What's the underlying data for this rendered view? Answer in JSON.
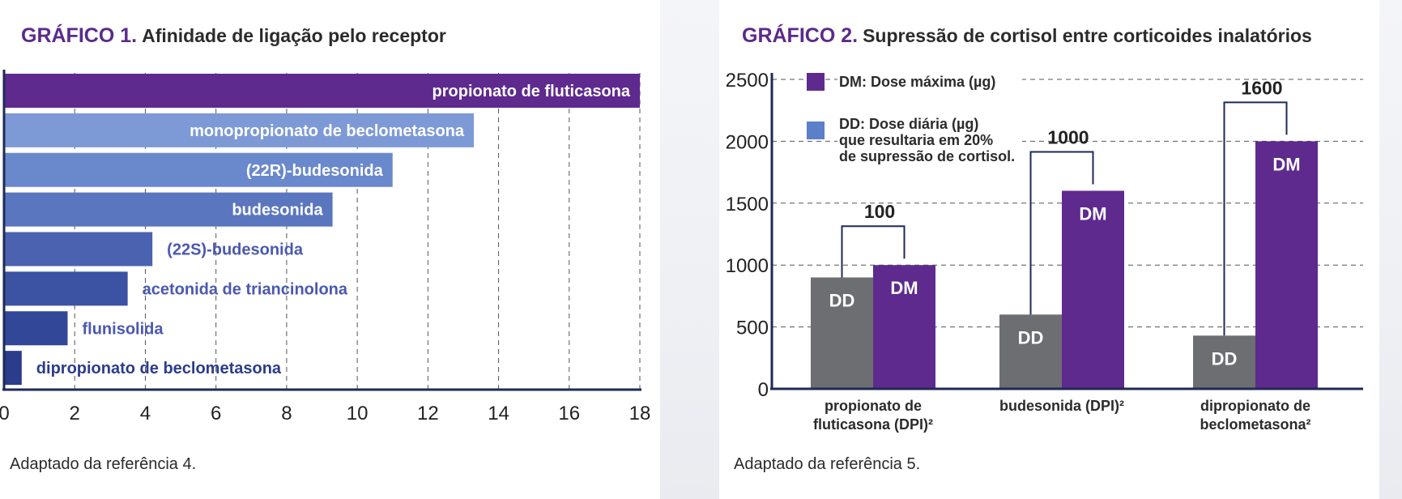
{
  "chart1": {
    "title_num": "GRÁFICO 1.",
    "title_text": "Afinidade de ligação pelo receptor",
    "footnote": "Adaptado da referência 4.",
    "chart_data": {
      "type": "bar",
      "orientation": "horizontal",
      "categories": [
        "propionato de fluticasona",
        "monopropionato de beclometasona",
        "(22R)-budesonida",
        "budesonida",
        "(22S)-budesonida",
        "acetonida de triancinolona",
        "flunisolida",
        "dipropionato de beclometasona"
      ],
      "values": [
        18,
        13.3,
        11,
        9.3,
        4.2,
        3.5,
        1.8,
        0.5
      ],
      "xlim": [
        0,
        18
      ],
      "xticks": [
        "0",
        "2",
        "4",
        "6",
        "8",
        "10",
        "12",
        "14",
        "16",
        "18"
      ],
      "grid": "vertical dashed",
      "bar_colors": [
        "#5e2a8e",
        "#7d9ad6",
        "#6a88cc",
        "#5a76be",
        "#4a62b0",
        "#3c52a2",
        "#334799",
        "#2b3c8c"
      ],
      "label_colors": [
        "#ffffff",
        "#ffffff",
        "#ffffff",
        "#ffffff",
        "#4a58b0",
        "#4a58b0",
        "#4a58b0",
        "#2b3c8c"
      ]
    }
  },
  "chart2": {
    "title_num": "GRÁFICO 2.",
    "title_text": "Supressão de cortisol entre corticoides inalatórios",
    "footnote": "Adaptado da referência 5.",
    "chart_data": {
      "type": "bar",
      "categories": [
        [
          "propionato de",
          "fluticasona (DPI)²"
        ],
        [
          "budesonida (DPI)²"
        ],
        [
          "dipropionato de",
          "beclometasona²"
        ]
      ],
      "series": [
        {
          "name": "DD",
          "values": [
            900,
            600,
            430
          ],
          "bar_label": "DD",
          "color": "#6d6e71"
        },
        {
          "name": "DM",
          "values": [
            1000,
            1600,
            2000
          ],
          "bar_label": "DM",
          "color": "#5e2a8e"
        }
      ],
      "annotations": [
        "100",
        "1000",
        "1600"
      ],
      "ylim": [
        0,
        2500
      ],
      "yticks": [
        "0",
        "500",
        "1000",
        "1500",
        "2000",
        "2500"
      ],
      "grid": "horizontal dashed",
      "legend": {
        "position": "top-left",
        "items": [
          {
            "lines": [
              "DM: Dose máxima (µg)"
            ],
            "color": "#5e2a8e"
          },
          {
            "lines": [
              "DD: Dose diária (µg)",
              "que resultaria em 20%",
              "de supressão de cortisol."
            ],
            "color": "#5b7fc8"
          }
        ]
      }
    }
  }
}
